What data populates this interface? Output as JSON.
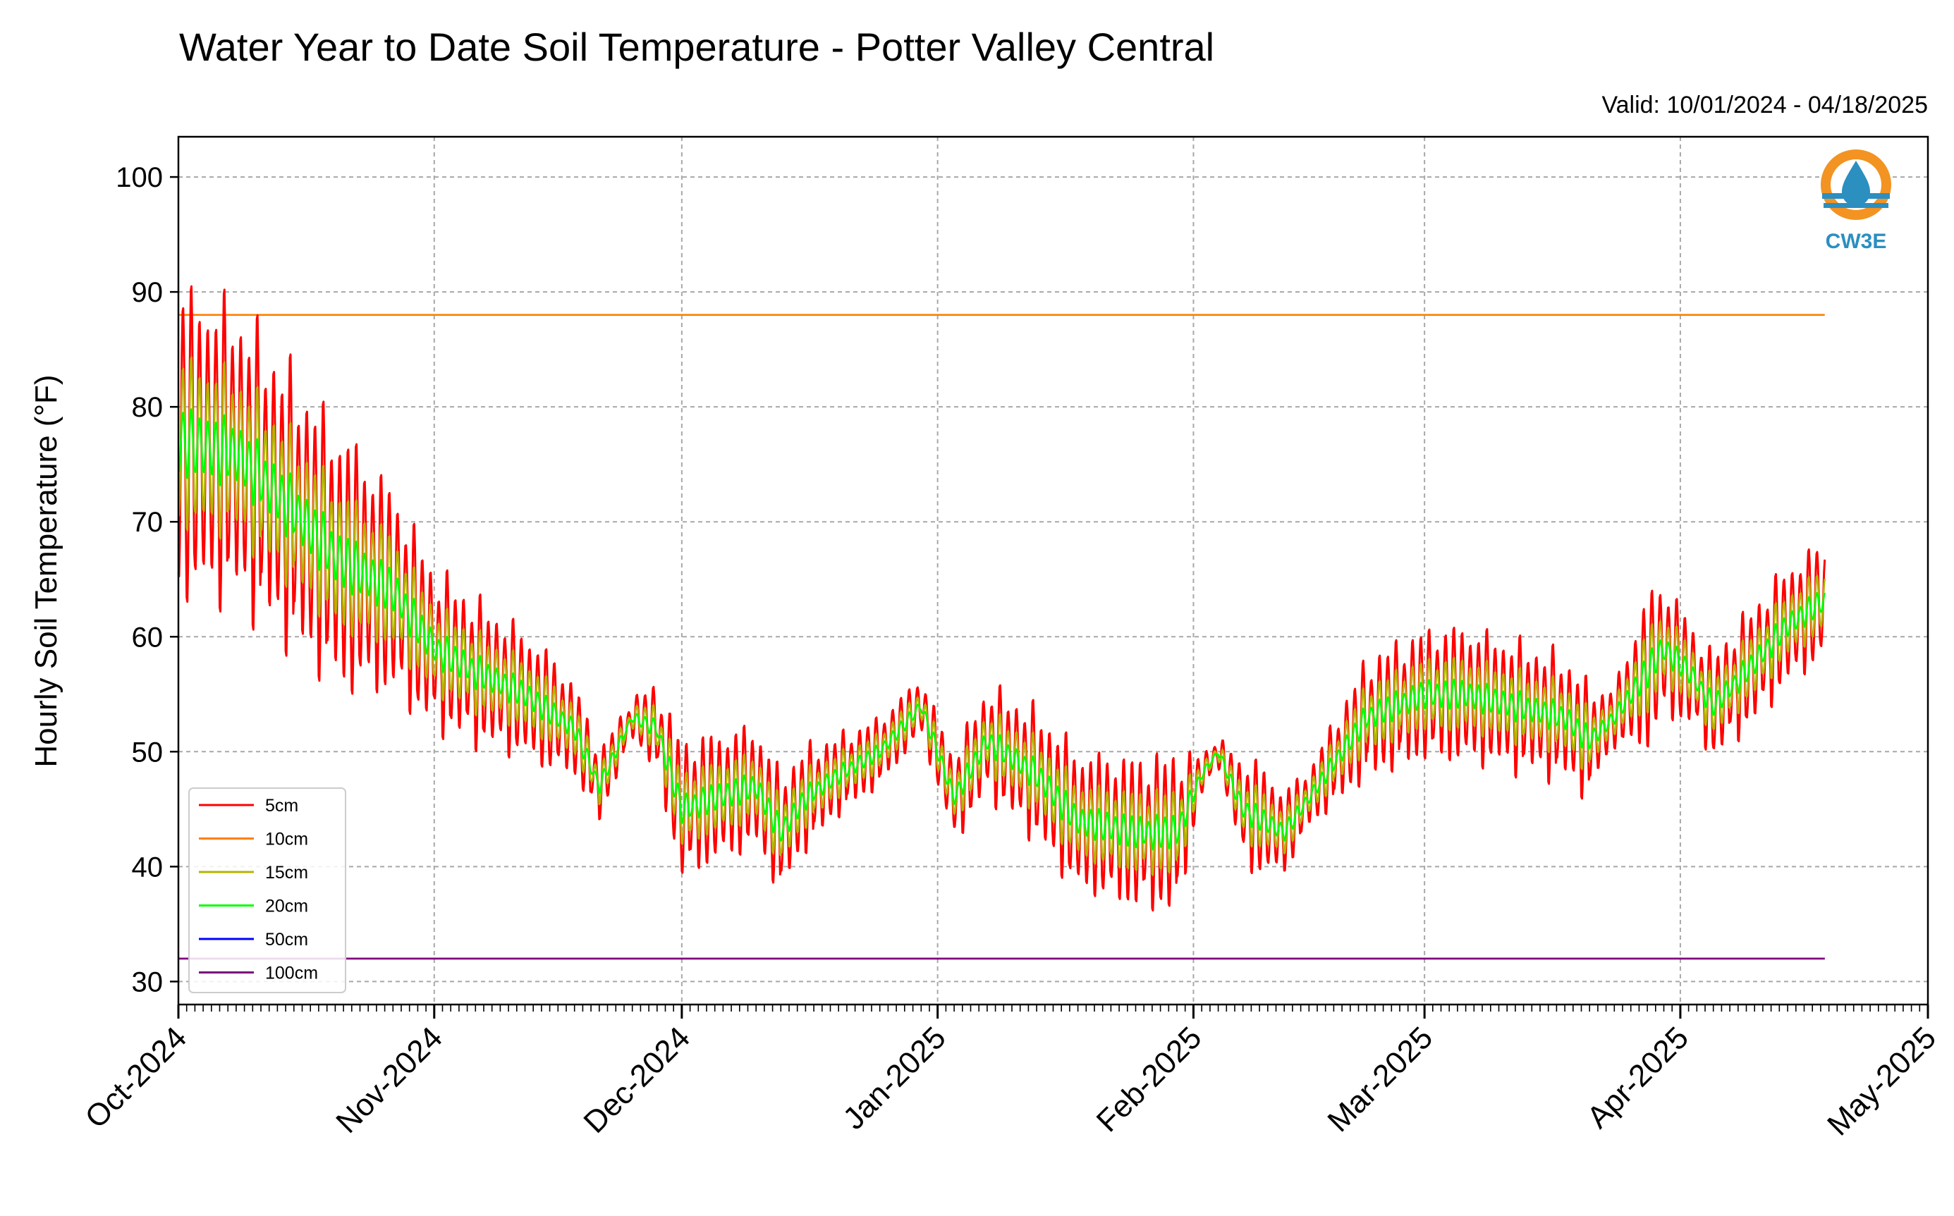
{
  "chart_data": {
    "type": "line",
    "title": "Water Year to Date Soil Temperature - Potter Valley Central",
    "subtitle": "Valid: 10/01/2024 - 04/18/2025",
    "xlabel": "",
    "ylabel": "Hourly Soil Temperature (°F)",
    "x_range": [
      "2024-10-01",
      "2025-05-01"
    ],
    "ylim": [
      28,
      103.5
    ],
    "y_ticks": [
      30,
      40,
      50,
      60,
      70,
      80,
      90,
      100
    ],
    "x_ticks": [
      {
        "date": "2024-10-01",
        "label": "Oct-2024"
      },
      {
        "date": "2024-11-01",
        "label": "Nov-2024"
      },
      {
        "date": "2024-12-01",
        "label": "Dec-2024"
      },
      {
        "date": "2025-01-01",
        "label": "Jan-2025"
      },
      {
        "date": "2025-02-01",
        "label": "Feb-2025"
      },
      {
        "date": "2025-03-01",
        "label": "Mar-2025"
      },
      {
        "date": "2025-04-01",
        "label": "Apr-2025"
      },
      {
        "date": "2025-05-01",
        "label": "May-2025"
      }
    ],
    "grid": true,
    "legend_position": "lower-left",
    "series": [
      {
        "name": "5cm",
        "color": "#ff0000",
        "style": "diurnal",
        "amplitude_scale": 1.0
      },
      {
        "name": "10cm",
        "color": "#ff8000",
        "style": "constant",
        "value": 88
      },
      {
        "name": "15cm",
        "color": "#b4b400",
        "style": "diurnal",
        "amplitude_scale": 0.55
      },
      {
        "name": "20cm",
        "color": "#00ff00",
        "style": "diurnal",
        "amplitude_scale": 0.22
      },
      {
        "name": "50cm",
        "color": "#0000ff",
        "style": "constant",
        "value": 32
      },
      {
        "name": "100cm",
        "color": "#800080",
        "style": "constant",
        "value": 32
      }
    ],
    "daily_profile": {
      "start_date": "2024-10-01",
      "end_date": "2025-04-18",
      "daily_mean_anchors": [
        [
          "2024-10-01",
          77
        ],
        [
          "2024-10-08",
          76
        ],
        [
          "2024-10-15",
          71
        ],
        [
          "2024-10-20",
          67
        ],
        [
          "2024-10-27",
          64
        ],
        [
          "2024-11-01",
          59
        ],
        [
          "2024-11-06",
          57
        ],
        [
          "2024-11-12",
          55
        ],
        [
          "2024-11-18",
          52
        ],
        [
          "2024-11-21",
          47
        ],
        [
          "2024-11-25",
          53
        ],
        [
          "2024-11-28",
          52
        ],
        [
          "2024-12-01",
          45
        ],
        [
          "2024-12-05",
          46
        ],
        [
          "2024-12-10",
          47
        ],
        [
          "2024-12-13",
          43
        ],
        [
          "2024-12-16",
          46
        ],
        [
          "2024-12-20",
          48
        ],
        [
          "2024-12-25",
          50
        ],
        [
          "2024-12-30",
          54
        ],
        [
          "2025-01-01",
          50
        ],
        [
          "2025-01-03",
          46
        ],
        [
          "2025-01-07",
          51
        ],
        [
          "2025-01-13",
          48
        ],
        [
          "2025-01-18",
          44
        ],
        [
          "2025-01-25",
          43
        ],
        [
          "2025-01-30",
          43
        ],
        [
          "2025-02-02",
          48
        ],
        [
          "2025-02-04",
          50
        ],
        [
          "2025-02-07",
          45
        ],
        [
          "2025-02-12",
          43
        ],
        [
          "2025-02-16",
          47
        ],
        [
          "2025-02-22",
          53
        ],
        [
          "2025-03-01",
          55
        ],
        [
          "2025-03-06",
          55
        ],
        [
          "2025-03-12",
          54
        ],
        [
          "2025-03-18",
          53
        ],
        [
          "2025-03-21",
          51
        ],
        [
          "2025-03-24",
          53
        ],
        [
          "2025-03-30",
          59
        ],
        [
          "2025-04-02",
          57
        ],
        [
          "2025-04-05",
          54
        ],
        [
          "2025-04-09",
          57
        ],
        [
          "2025-04-14",
          61
        ],
        [
          "2025-04-18",
          63
        ]
      ],
      "daily_amplitude_anchors": [
        [
          "2024-10-01",
          16
        ],
        [
          "2024-10-12",
          14
        ],
        [
          "2024-10-22",
          13
        ],
        [
          "2024-11-01",
          8
        ],
        [
          "2024-11-15",
          6
        ],
        [
          "2024-11-20",
          4
        ],
        [
          "2024-11-25",
          2
        ],
        [
          "2024-12-01",
          7
        ],
        [
          "2024-12-13",
          6
        ],
        [
          "2024-12-20",
          4
        ],
        [
          "2024-12-30",
          3
        ],
        [
          "2025-01-05",
          5
        ],
        [
          "2025-01-15",
          7
        ],
        [
          "2025-01-30",
          8
        ],
        [
          "2025-02-02",
          2
        ],
        [
          "2025-02-04",
          1.5
        ],
        [
          "2025-02-08",
          6
        ],
        [
          "2025-02-15",
          3
        ],
        [
          "2025-02-22",
          6
        ],
        [
          "2025-03-05",
          7
        ],
        [
          "2025-03-20",
          6
        ],
        [
          "2025-03-24",
          3
        ],
        [
          "2025-03-28",
          8
        ],
        [
          "2025-04-03",
          5
        ],
        [
          "2025-04-10",
          6
        ],
        [
          "2025-04-18",
          6
        ]
      ]
    }
  },
  "logo": {
    "text": "CW3E",
    "ring_color": "#f39322",
    "drop_color": "#2b8fc0"
  }
}
